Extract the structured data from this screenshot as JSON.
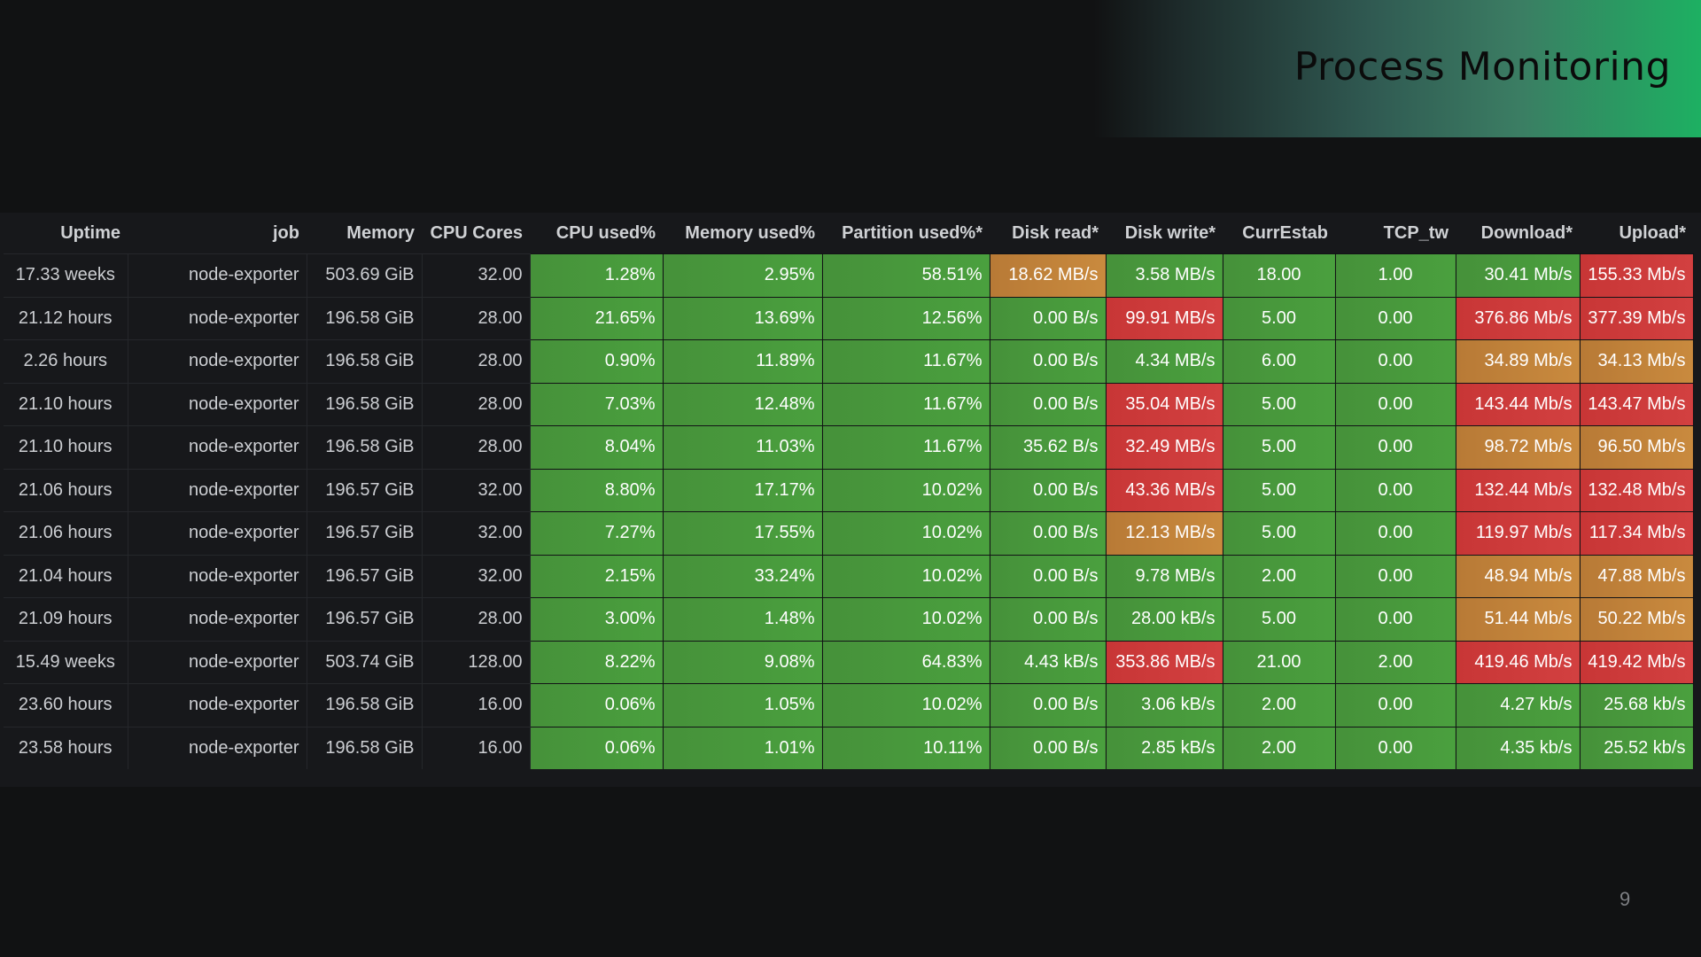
{
  "slide": {
    "title": "Process Monitoring",
    "page_number": "9"
  },
  "colors": {
    "green": "#4a9d3d",
    "orange": "#c4843a",
    "red": "#cf3b3b",
    "background": "#111213",
    "banner_accent": "#1db062"
  },
  "table": {
    "columns": [
      "Uptime",
      "job",
      "Memory",
      "CPU Cores",
      "CPU used%",
      "Memory used%",
      "Partition used%*",
      "Disk read*",
      "Disk write*",
      "CurrEstab",
      "TCP_tw",
      "Download*",
      "Upload*"
    ],
    "rows": [
      {
        "uptime": "17.33 weeks",
        "job": "node-exporter",
        "memory": "503.69 GiB",
        "cpu_cores": "32.00",
        "cpu_used": "1.28%",
        "mem_used": "2.95%",
        "partition_used": "58.51%",
        "disk_read": "18.62 MB/s",
        "disk_write": "3.58 MB/s",
        "currestab": "18.00",
        "tcp_tw": "1.00",
        "download": "30.41 Mb/s",
        "upload": "155.33 Mb/s",
        "status": {
          "disk_read": "orange",
          "disk_write": "green",
          "download": "green",
          "upload": "red"
        }
      },
      {
        "uptime": "21.12 hours",
        "job": "node-exporter",
        "memory": "196.58 GiB",
        "cpu_cores": "28.00",
        "cpu_used": "21.65%",
        "mem_used": "13.69%",
        "partition_used": "12.56%",
        "disk_read": "0.00 B/s",
        "disk_write": "99.91 MB/s",
        "currestab": "5.00",
        "tcp_tw": "0.00",
        "download": "376.86 Mb/s",
        "upload": "377.39 Mb/s",
        "status": {
          "disk_read": "green",
          "disk_write": "red",
          "download": "red",
          "upload": "red"
        }
      },
      {
        "uptime": "2.26 hours",
        "job": "node-exporter",
        "memory": "196.58 GiB",
        "cpu_cores": "28.00",
        "cpu_used": "0.90%",
        "mem_used": "11.89%",
        "partition_used": "11.67%",
        "disk_read": "0.00 B/s",
        "disk_write": "4.34 MB/s",
        "currestab": "6.00",
        "tcp_tw": "0.00",
        "download": "34.89 Mb/s",
        "upload": "34.13 Mb/s",
        "status": {
          "disk_read": "green",
          "disk_write": "green",
          "download": "orange",
          "upload": "orange"
        }
      },
      {
        "uptime": "21.10 hours",
        "job": "node-exporter",
        "memory": "196.58 GiB",
        "cpu_cores": "28.00",
        "cpu_used": "7.03%",
        "mem_used": "12.48%",
        "partition_used": "11.67%",
        "disk_read": "0.00 B/s",
        "disk_write": "35.04 MB/s",
        "currestab": "5.00",
        "tcp_tw": "0.00",
        "download": "143.44 Mb/s",
        "upload": "143.47 Mb/s",
        "status": {
          "disk_read": "green",
          "disk_write": "red",
          "download": "red",
          "upload": "red"
        }
      },
      {
        "uptime": "21.10 hours",
        "job": "node-exporter",
        "memory": "196.58 GiB",
        "cpu_cores": "28.00",
        "cpu_used": "8.04%",
        "mem_used": "11.03%",
        "partition_used": "11.67%",
        "disk_read": "35.62 B/s",
        "disk_write": "32.49 MB/s",
        "currestab": "5.00",
        "tcp_tw": "0.00",
        "download": "98.72 Mb/s",
        "upload": "96.50 Mb/s",
        "status": {
          "disk_read": "green",
          "disk_write": "red",
          "download": "orange",
          "upload": "orange"
        }
      },
      {
        "uptime": "21.06 hours",
        "job": "node-exporter",
        "memory": "196.57 GiB",
        "cpu_cores": "32.00",
        "cpu_used": "8.80%",
        "mem_used": "17.17%",
        "partition_used": "10.02%",
        "disk_read": "0.00 B/s",
        "disk_write": "43.36 MB/s",
        "currestab": "5.00",
        "tcp_tw": "0.00",
        "download": "132.44 Mb/s",
        "upload": "132.48 Mb/s",
        "status": {
          "disk_read": "green",
          "disk_write": "red",
          "download": "red",
          "upload": "red"
        }
      },
      {
        "uptime": "21.06 hours",
        "job": "node-exporter",
        "memory": "196.57 GiB",
        "cpu_cores": "32.00",
        "cpu_used": "7.27%",
        "mem_used": "17.55%",
        "partition_used": "10.02%",
        "disk_read": "0.00 B/s",
        "disk_write": "12.13 MB/s",
        "currestab": "5.00",
        "tcp_tw": "0.00",
        "download": "119.97 Mb/s",
        "upload": "117.34 Mb/s",
        "status": {
          "disk_read": "green",
          "disk_write": "orange",
          "download": "red",
          "upload": "red"
        }
      },
      {
        "uptime": "21.04 hours",
        "job": "node-exporter",
        "memory": "196.57 GiB",
        "cpu_cores": "32.00",
        "cpu_used": "2.15%",
        "mem_used": "33.24%",
        "partition_used": "10.02%",
        "disk_read": "0.00 B/s",
        "disk_write": "9.78 MB/s",
        "currestab": "2.00",
        "tcp_tw": "0.00",
        "download": "48.94 Mb/s",
        "upload": "47.88 Mb/s",
        "status": {
          "disk_read": "green",
          "disk_write": "green",
          "download": "orange",
          "upload": "orange"
        }
      },
      {
        "uptime": "21.09 hours",
        "job": "node-exporter",
        "memory": "196.57 GiB",
        "cpu_cores": "28.00",
        "cpu_used": "3.00%",
        "mem_used": "1.48%",
        "partition_used": "10.02%",
        "disk_read": "0.00 B/s",
        "disk_write": "28.00 kB/s",
        "currestab": "5.00",
        "tcp_tw": "0.00",
        "download": "51.44 Mb/s",
        "upload": "50.22 Mb/s",
        "status": {
          "disk_read": "green",
          "disk_write": "green",
          "download": "orange",
          "upload": "orange"
        }
      },
      {
        "uptime": "15.49 weeks",
        "job": "node-exporter",
        "memory": "503.74 GiB",
        "cpu_cores": "128.00",
        "cpu_used": "8.22%",
        "mem_used": "9.08%",
        "partition_used": "64.83%",
        "disk_read": "4.43 kB/s",
        "disk_write": "353.86 MB/s",
        "currestab": "21.00",
        "tcp_tw": "2.00",
        "download": "419.46 Mb/s",
        "upload": "419.42 Mb/s",
        "status": {
          "disk_read": "green",
          "disk_write": "red",
          "download": "red",
          "upload": "red"
        }
      },
      {
        "uptime": "23.60 hours",
        "job": "node-exporter",
        "memory": "196.58 GiB",
        "cpu_cores": "16.00",
        "cpu_used": "0.06%",
        "mem_used": "1.05%",
        "partition_used": "10.02%",
        "disk_read": "0.00 B/s",
        "disk_write": "3.06 kB/s",
        "currestab": "2.00",
        "tcp_tw": "0.00",
        "download": "4.27 kb/s",
        "upload": "25.68 kb/s",
        "status": {
          "disk_read": "green",
          "disk_write": "green",
          "download": "green",
          "upload": "green"
        }
      },
      {
        "uptime": "23.58 hours",
        "job": "node-exporter",
        "memory": "196.58 GiB",
        "cpu_cores": "16.00",
        "cpu_used": "0.06%",
        "mem_used": "1.01%",
        "partition_used": "10.11%",
        "disk_read": "0.00 B/s",
        "disk_write": "2.85 kB/s",
        "currestab": "2.00",
        "tcp_tw": "0.00",
        "download": "4.35 kb/s",
        "upload": "25.52 kb/s",
        "status": {
          "disk_read": "green",
          "disk_write": "green",
          "download": "green",
          "upload": "green"
        }
      }
    ]
  }
}
